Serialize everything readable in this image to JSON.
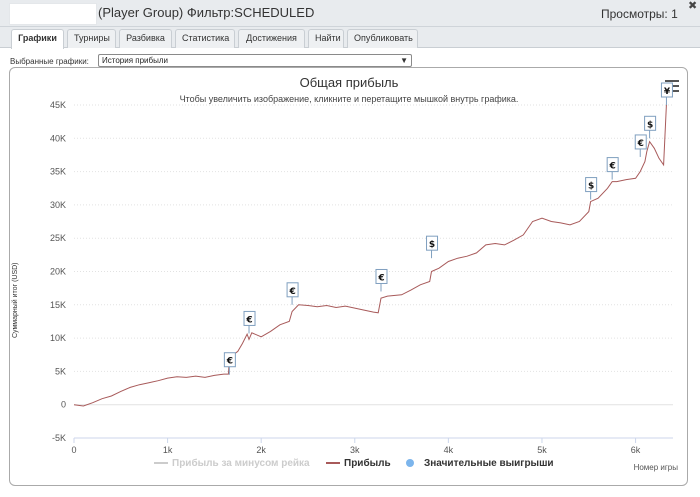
{
  "window": {
    "title": "(Player Group) Фильтр:SCHEDULED",
    "views_label": "Просмотры: 1",
    "close_glyph": "✖"
  },
  "tabs": [
    {
      "label": "Графики",
      "active": true
    },
    {
      "label": "Турниры",
      "active": false
    },
    {
      "label": "Разбивка",
      "active": false
    },
    {
      "label": "Статистика",
      "active": false
    },
    {
      "label": "Достижения",
      "active": false
    },
    {
      "label": "Найти",
      "active": false
    },
    {
      "label": "Опубликовать",
      "active": false
    }
  ],
  "chart_selector": {
    "label": "Выбранные графики:",
    "value": "История прибыли"
  },
  "chart_data": {
    "type": "line",
    "title": "Общая прибыль",
    "subtitle": "Чтобы увеличить изображение, кликните и перетащите мышкой внутрь графика.",
    "ylabel": "Суммарный итог (USD)",
    "xlabel": "Номер игры",
    "ylim": [
      -5000,
      45000
    ],
    "xlim": [
      0,
      6400
    ],
    "y_ticks": [
      -5000,
      0,
      5000,
      10000,
      15000,
      20000,
      25000,
      30000,
      35000,
      40000,
      45000
    ],
    "y_tick_labels": [
      "-5K",
      "0",
      "5K",
      "10K",
      "15K",
      "20K",
      "25K",
      "30K",
      "35K",
      "40K",
      "45K"
    ],
    "x_ticks": [
      0,
      1000,
      2000,
      3000,
      4000,
      5000,
      6000
    ],
    "x_tick_labels": [
      "0",
      "1k",
      "2k",
      "3k",
      "4k",
      "5k",
      "6k"
    ],
    "grid": true,
    "legend_position": "bottom",
    "legend": [
      {
        "name": "Прибыль за минусом рейка",
        "color": "#cccccc",
        "marker": "line",
        "visible": false
      },
      {
        "name": "Прибыль",
        "color": "#a85a5a",
        "marker": "line",
        "visible": true
      },
      {
        "name": "Значительные выигрыши",
        "color": "#7cb5ec",
        "marker": "circle",
        "visible": true
      }
    ],
    "series": [
      {
        "name": "Прибыль",
        "color": "#a85a5a",
        "points": [
          [
            0,
            0
          ],
          [
            100,
            -200
          ],
          [
            200,
            300
          ],
          [
            300,
            900
          ],
          [
            400,
            1300
          ],
          [
            500,
            2000
          ],
          [
            600,
            2600
          ],
          [
            700,
            3000
          ],
          [
            800,
            3300
          ],
          [
            900,
            3600
          ],
          [
            1000,
            4000
          ],
          [
            1100,
            4200
          ],
          [
            1200,
            4100
          ],
          [
            1300,
            4300
          ],
          [
            1400,
            4100
          ],
          [
            1500,
            4400
          ],
          [
            1600,
            4600
          ],
          [
            1650,
            4600
          ],
          [
            1660,
            7000
          ],
          [
            1700,
            7500
          ],
          [
            1750,
            8000
          ],
          [
            1800,
            9200
          ],
          [
            1850,
            10600
          ],
          [
            1870,
            9800
          ],
          [
            1900,
            10800
          ],
          [
            2000,
            10200
          ],
          [
            2100,
            11000
          ],
          [
            2200,
            12000
          ],
          [
            2300,
            12500
          ],
          [
            2330,
            14000
          ],
          [
            2400,
            15000
          ],
          [
            2500,
            14900
          ],
          [
            2600,
            14700
          ],
          [
            2700,
            14900
          ],
          [
            2800,
            14600
          ],
          [
            2900,
            14800
          ],
          [
            3000,
            14500
          ],
          [
            3100,
            14200
          ],
          [
            3200,
            13900
          ],
          [
            3250,
            13800
          ],
          [
            3280,
            16000
          ],
          [
            3350,
            16300
          ],
          [
            3500,
            16500
          ],
          [
            3600,
            17200
          ],
          [
            3700,
            18000
          ],
          [
            3800,
            18500
          ],
          [
            3820,
            20000
          ],
          [
            3900,
            20500
          ],
          [
            4000,
            21500
          ],
          [
            4100,
            22000
          ],
          [
            4200,
            22300
          ],
          [
            4300,
            22800
          ],
          [
            4400,
            24000
          ],
          [
            4500,
            24200
          ],
          [
            4600,
            24000
          ],
          [
            4700,
            24700
          ],
          [
            4800,
            25500
          ],
          [
            4900,
            27500
          ],
          [
            5000,
            28000
          ],
          [
            5100,
            27500
          ],
          [
            5200,
            27300
          ],
          [
            5300,
            27000
          ],
          [
            5400,
            27500
          ],
          [
            5500,
            29000
          ],
          [
            5520,
            30500
          ],
          [
            5600,
            31000
          ],
          [
            5700,
            32500
          ],
          [
            5750,
            33500
          ],
          [
            5800,
            33500
          ],
          [
            5900,
            33800
          ],
          [
            6000,
            34000
          ],
          [
            6050,
            35000
          ],
          [
            6100,
            36500
          ],
          [
            6120,
            38000
          ],
          [
            6150,
            39500
          ],
          [
            6200,
            38500
          ],
          [
            6250,
            37000
          ],
          [
            6300,
            36000
          ],
          [
            6330,
            45000
          ]
        ]
      }
    ],
    "big_wins": [
      {
        "x": 1660,
        "y": 4500,
        "symbol": "€"
      },
      {
        "x": 1870,
        "y": 10700,
        "symbol": "€"
      },
      {
        "x": 2330,
        "y": 15000,
        "symbol": "€"
      },
      {
        "x": 3280,
        "y": 17000,
        "symbol": "€"
      },
      {
        "x": 3820,
        "y": 22000,
        "symbol": "$"
      },
      {
        "x": 5520,
        "y": 30800,
        "symbol": "$"
      },
      {
        "x": 5750,
        "y": 33800,
        "symbol": "€"
      },
      {
        "x": 6050,
        "y": 37200,
        "symbol": "€"
      },
      {
        "x": 6150,
        "y": 40000,
        "symbol": "$"
      },
      {
        "x": 6330,
        "y": 45000,
        "symbol": "¥"
      }
    ]
  },
  "icons": {
    "menu": "hamburger-menu-icon",
    "close": "close-icon",
    "dropdown": "chevron-down-icon"
  }
}
